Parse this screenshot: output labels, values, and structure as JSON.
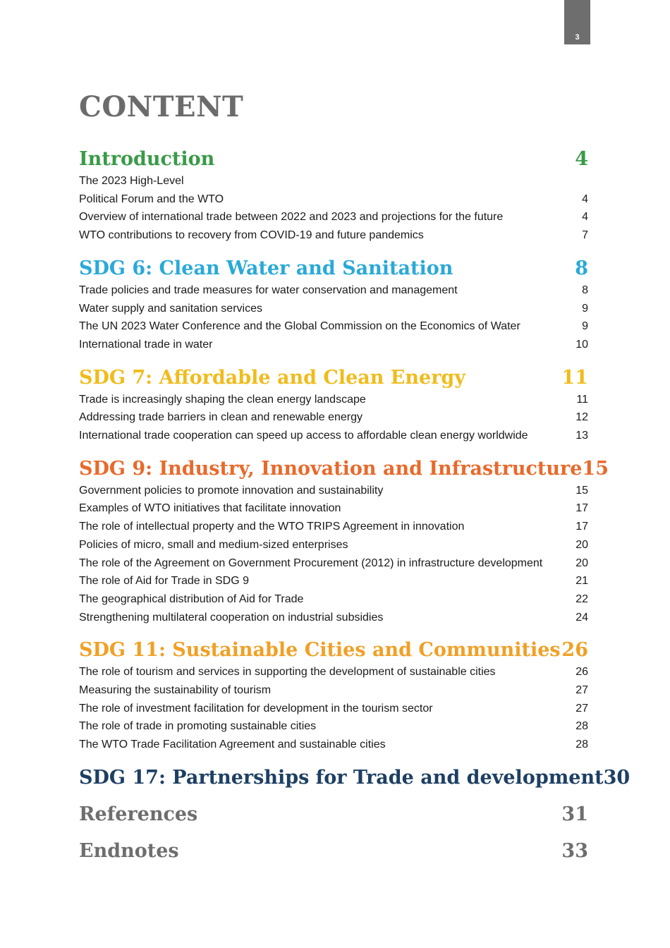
{
  "page_number": "3",
  "title": "CONTENT",
  "colors": {
    "green": "#3a9a48",
    "cyan": "#2aa9d8",
    "yellow": "#f0bc1c",
    "orange": "#e86a2b",
    "amber": "#f0a026",
    "navy": "#1d3f63",
    "gray": "#6e6e6e"
  },
  "sections": [
    {
      "title": "Introduction",
      "page": "4",
      "entries": [
        {
          "text": "The 2023 High-Level",
          "page": ""
        },
        {
          "text": "Political Forum and the WTO",
          "page": "4"
        },
        {
          "text": "Overview of international trade between 2022 and 2023 and projections for the future",
          "page": "4"
        },
        {
          "text": "WTO contributions to recovery from COVID-19 and future pandemics",
          "page": "7"
        }
      ]
    },
    {
      "title": "SDG 6: Clean Water and Sanitation",
      "page": "8",
      "entries": [
        {
          "text": "Trade policies and trade measures for water conservation and management",
          "page": "8"
        },
        {
          "text": "Water supply and sanitation services",
          "page": "9"
        },
        {
          "text": "The UN 2023 Water Conference and the Global Commission on the Economics of Water",
          "page": "9"
        },
        {
          "text": "International trade in water",
          "page": "10"
        }
      ]
    },
    {
      "title": "SDG 7: Affordable and Clean Energy",
      "page": "11",
      "entries": [
        {
          "text": "Trade is increasingly shaping the clean energy landscape",
          "page": "11"
        },
        {
          "text": "Addressing trade barriers in clean and renewable energy",
          "page": "12"
        },
        {
          "text": "International trade cooperation can speed up access to affordable clean energy worldwide",
          "page": "13"
        }
      ]
    },
    {
      "title": "SDG 9: Industry, Innovation and Infrastructure",
      "page": "15",
      "entries": [
        {
          "text": "Government policies to promote innovation and sustainability",
          "page": "15"
        },
        {
          "text": "Examples of WTO initiatives that facilitate innovation",
          "page": "17"
        },
        {
          "text": "The role of intellectual property and the WTO TRIPS Agreement in innovation",
          "page": "17"
        },
        {
          "text": "Policies of micro, small and medium-sized enterprises",
          "page": "20"
        },
        {
          "text": "The role of the Agreement on Government Procurement (2012) in infrastructure development",
          "page": "20"
        },
        {
          "text": "The role of Aid for Trade in SDG 9",
          "page": "21"
        },
        {
          "text": "The geographical distribution of Aid for Trade",
          "page": "22"
        },
        {
          "text": "Strengthening multilateral cooperation on industrial subsidies",
          "page": "24"
        }
      ]
    },
    {
      "title": "SDG 11: Sustainable Cities and Communities",
      "page": "26",
      "entries": [
        {
          "text": "The role of tourism and services in supporting the development of sustainable cities",
          "page": "26"
        },
        {
          "text": "Measuring the sustainability of tourism",
          "page": "27"
        },
        {
          "text": "The role of investment facilitation for development in the tourism sector",
          "page": "27"
        },
        {
          "text": "The role of trade in promoting sustainable cities",
          "page": "28"
        },
        {
          "text": "The WTO Trade Facilitation Agreement and sustainable cities",
          "page": "28"
        }
      ]
    },
    {
      "title": "SDG 17: Partnerships for Trade and development",
      "page": "30",
      "entries": []
    },
    {
      "title": "References",
      "page": "31",
      "entries": []
    },
    {
      "title": "Endnotes",
      "page": "33",
      "entries": []
    }
  ]
}
